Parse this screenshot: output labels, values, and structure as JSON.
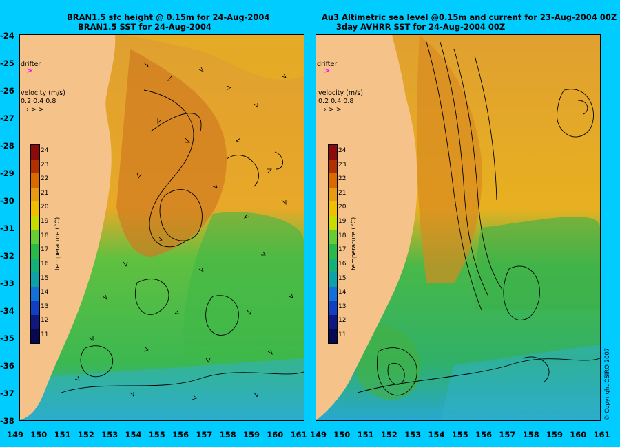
{
  "left_panel": {
    "title_line1": "BRAN1.5 sfc height @ 0.15m for 24-Aug-2004",
    "title_line2": "BRAN1.5 SST for 24-Aug-2004"
  },
  "right_panel": {
    "title_line1": "Au3 Altimetric sea level  @0.15m and current for 23-Aug-2004 00Z",
    "title_line2": "3day AVHRR SST for 24-Aug-2004 00Z"
  },
  "drifter_label": "drifter",
  "drifter_symbol": ">",
  "velocity_legend": {
    "title": "velocity (m/s)",
    "values": "0.2 0.4 0.8",
    "arrows": "›  >  >"
  },
  "colorbar": {
    "title": "temperature (°C)",
    "ticks": [
      "24",
      "23",
      "22",
      "21",
      "20",
      "19",
      "18",
      "17",
      "16",
      "15",
      "14",
      "13",
      "12",
      "11"
    ],
    "colors": [
      "#8b0a0a",
      "#b23000",
      "#d86a00",
      "#e89a10",
      "#f0c000",
      "#c8dc00",
      "#66cc33",
      "#2cb846",
      "#14b07a",
      "#10a0a8",
      "#1470d8",
      "#1040c0",
      "#101880",
      "#080850"
    ]
  },
  "y_axis_labels": [
    "-24",
    "-25",
    "-26",
    "-27",
    "-28",
    "-29",
    "-30",
    "-31",
    "-32",
    "-33",
    "-34",
    "-35",
    "-36",
    "-37",
    "-38"
  ],
  "x_axis_left": [
    "149",
    "150",
    "151",
    "152",
    "153",
    "154",
    "155",
    "156",
    "157",
    "158",
    "159",
    "160",
    "161"
  ],
  "x_axis_right": [
    "149",
    "150",
    "151",
    "152",
    "153",
    "154",
    "155",
    "156",
    "157",
    "158",
    "159",
    "160",
    "161"
  ],
  "copyright": "© Copyright CSIRO 2007",
  "colors": {
    "background": "#00ccff",
    "land": "#f5c38a",
    "warm": "#e09a20",
    "mid": "#f0c000",
    "cool": "#2cb846",
    "cold": "#20a0d8"
  }
}
